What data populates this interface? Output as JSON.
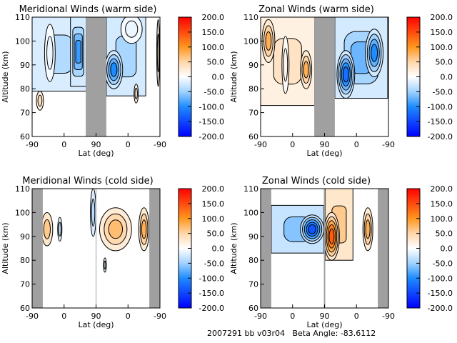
{
  "footer": "2007291 bb v03r04   Beta Angle: -83.6112",
  "chart_data": [
    {
      "type": "heatmap",
      "title": "Meridional Winds (warm side)",
      "xlabel": "Lat (deg)",
      "ylabel": "Altitude (km)",
      "xticks": [
        "-90",
        "0",
        "90",
        "0",
        "-90"
      ],
      "yticks": [
        "60",
        "70",
        "80",
        "90",
        "100",
        "110"
      ],
      "ylim": [
        60,
        110
      ],
      "colorbar": {
        "ticks": [
          "200.0",
          "150.0",
          "100.0",
          "50.0",
          "0.0",
          "-50.0",
          "-100.0",
          "-150.0",
          "-200.0"
        ],
        "range": [
          -200,
          200
        ]
      },
      "no_data": [
        [
          61,
          119
        ]
      ],
      "features": [
        {
          "shape": "rect",
          "x": [
            -90,
            62
          ],
          "alt": [
            79,
            110
          ],
          "v": -40
        },
        {
          "shape": "rect",
          "x": [
            18,
            62
          ],
          "alt": [
            81,
            110
          ],
          "v": -90
        },
        {
          "shape": "rect",
          "x": [
            119,
            230
          ],
          "alt": [
            77,
            110
          ],
          "v": -45
        },
        {
          "shape": "ellipse",
          "x": 140,
          "alt": 88,
          "rx": 25,
          "ry": 8,
          "v": -100
        },
        {
          "shape": "ellipse",
          "x": -40,
          "alt": 95,
          "rx": 15,
          "ry": 12,
          "v": -10
        },
        {
          "shape": "ellipse",
          "x": 190,
          "alt": 105,
          "rx": 30,
          "ry": 6,
          "v": -10
        },
        {
          "shape": "ellipse",
          "x": -68,
          "alt": 75,
          "rx": 10,
          "ry": 4,
          "v": 40
        },
        {
          "shape": "ellipse",
          "x": 203,
          "alt": 78,
          "rx": 6,
          "ry": 4,
          "v": 30
        },
        {
          "shape": "ellipse",
          "x": 265,
          "alt": 95,
          "rx": 4,
          "ry": 14,
          "v": 30
        }
      ]
    },
    {
      "type": "heatmap",
      "title": "Zonal Winds (warm side)",
      "xlabel": "Lat (deg)",
      "ylabel": "Altitude (km)",
      "xticks": [
        "-90",
        "0",
        "90",
        "0",
        "-90"
      ],
      "yticks": [
        "60",
        "70",
        "80",
        "90",
        "100",
        "110"
      ],
      "ylim": [
        60,
        110
      ],
      "colorbar": {
        "ticks": [
          "200.0",
          "150.0",
          "100.0",
          "50.0",
          "0.0",
          "-50.0",
          "-100.0",
          "-150.0",
          "-200.0"
        ],
        "range": [
          -200,
          200
        ]
      },
      "no_data": [
        [
          61,
          119
        ]
      ],
      "features": [
        {
          "shape": "rect",
          "x": [
            -90,
            62
          ],
          "alt": [
            73,
            110
          ],
          "v": 35
        },
        {
          "shape": "ellipse",
          "x": -68,
          "alt": 100,
          "rx": 18,
          "ry": 9,
          "v": 80
        },
        {
          "shape": "ellipse",
          "x": 38,
          "alt": 88,
          "rx": 16,
          "ry": 8,
          "v": 80
        },
        {
          "shape": "ellipse",
          "x": -20,
          "alt": 90,
          "rx": 10,
          "ry": 12,
          "v": 10
        },
        {
          "shape": "rect",
          "x": [
            119,
            268
          ],
          "alt": [
            76,
            110
          ],
          "v": -70
        },
        {
          "shape": "ellipse",
          "x": 150,
          "alt": 86,
          "rx": 25,
          "ry": 10,
          "v": -120
        },
        {
          "shape": "ellipse",
          "x": 230,
          "alt": 95,
          "rx": 25,
          "ry": 10,
          "v": -100
        }
      ]
    },
    {
      "type": "heatmap",
      "title": "Meridional Winds (cold side)",
      "xlabel": "Lat (deg)",
      "ylabel": "Altitude (km)",
      "xticks": [
        "-90",
        "0",
        "90",
        "0",
        "-90"
      ],
      "yticks": [
        "60",
        "70",
        "80",
        "90",
        "100",
        "110"
      ],
      "ylim": [
        60,
        110
      ],
      "colorbar": {
        "ticks": [
          "200.0",
          "150.0",
          "100.0",
          "50.0",
          "0.0",
          "-50.0",
          "-100.0",
          "-150.0",
          "-200.0"
        ],
        "range": [
          -200,
          200
        ]
      },
      "no_data": [
        [
          -90,
          -60
        ],
        [
          89,
          91
        ],
        [
          240,
          270
        ]
      ],
      "features": [
        {
          "shape": "ellipse",
          "x": -48,
          "alt": 93,
          "rx": 16,
          "ry": 7,
          "v": 60
        },
        {
          "shape": "ellipse",
          "x": -12,
          "alt": 93,
          "rx": 6,
          "ry": 5,
          "v": -30
        },
        {
          "shape": "ellipse",
          "x": 82,
          "alt": 100,
          "rx": 8,
          "ry": 10,
          "v": -40
        },
        {
          "shape": "ellipse",
          "x": 145,
          "alt": 93,
          "rx": 45,
          "ry": 9,
          "v": 70
        },
        {
          "shape": "ellipse",
          "x": 115,
          "alt": 78,
          "rx": 4,
          "ry": 3,
          "v": -20
        },
        {
          "shape": "ellipse",
          "x": 225,
          "alt": 93,
          "rx": 15,
          "ry": 9,
          "v": 80
        }
      ]
    },
    {
      "type": "heatmap",
      "title": "Zonal Winds (cold side)",
      "xlabel": "Lat (deg)",
      "ylabel": "Altitude (km)",
      "xticks": [
        "-90",
        "0",
        "90",
        "0",
        "-90"
      ],
      "yticks": [
        "60",
        "70",
        "80",
        "90",
        "100",
        "110"
      ],
      "ylim": [
        60,
        110
      ],
      "colorbar": {
        "ticks": [
          "200.0",
          "150.0",
          "100.0",
          "50.0",
          "0.0",
          "-50.0",
          "-100.0",
          "-150.0",
          "-200.0"
        ],
        "range": [
          -200,
          200
        ]
      },
      "no_data": [
        [
          -90,
          -60
        ],
        [
          88,
          92
        ],
        [
          240,
          270
        ]
      ],
      "features": [
        {
          "shape": "rect",
          "x": [
            -60,
            88
          ],
          "alt": [
            83,
            103
          ],
          "v": -60
        },
        {
          "shape": "ellipse",
          "x": 55,
          "alt": 93,
          "rx": 33,
          "ry": 6,
          "v": -140
        },
        {
          "shape": "rect",
          "x": [
            92,
            170
          ],
          "alt": [
            80,
            110
          ],
          "v": 60
        },
        {
          "shape": "ellipse",
          "x": 110,
          "alt": 90,
          "rx": 22,
          "ry": 10,
          "v": 140
        },
        {
          "shape": "ellipse",
          "x": 212,
          "alt": 93,
          "rx": 14,
          "ry": 9,
          "v": 80
        }
      ]
    }
  ]
}
